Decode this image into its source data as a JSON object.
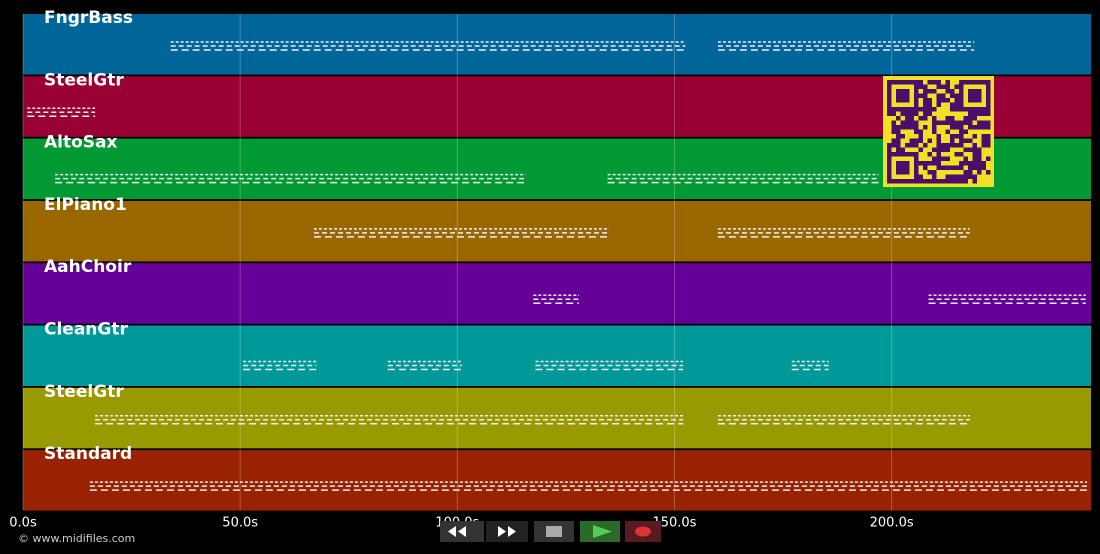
{
  "timeline": {
    "xlim": [
      0,
      245.9
    ],
    "xticks": [
      {
        "value": 0,
        "label": "0.0s"
      },
      {
        "value": 50,
        "label": "50.0s"
      },
      {
        "value": 100,
        "label": "100.0s"
      },
      {
        "value": 150,
        "label": "150.0s"
      },
      {
        "value": 200,
        "label": "200.0s"
      }
    ],
    "grid": true,
    "tracks": [
      {
        "name": "FngrBass",
        "color": "#00669a",
        "spans": [
          [
            34,
            152.5
          ],
          [
            160,
            219
          ]
        ]
      },
      {
        "name": "SteelGtr",
        "color": "#990033",
        "spans": [
          [
            1,
            16.6
          ]
        ]
      },
      {
        "name": "AltoSax",
        "color": "#009933",
        "spans": [
          [
            7.4,
            115.7
          ],
          [
            134.6,
            197
          ]
        ]
      },
      {
        "name": "ElPiano1",
        "color": "#996600",
        "spans": [
          [
            67,
            135
          ],
          [
            160,
            218
          ]
        ]
      },
      {
        "name": "AahChoir",
        "color": "#660099",
        "spans": [
          [
            117.5,
            128
          ],
          [
            208.5,
            244.7
          ]
        ]
      },
      {
        "name": "CleanGtr",
        "color": "#009999",
        "spans": [
          [
            50.7,
            67.5
          ],
          [
            84,
            101
          ],
          [
            118,
            152
          ],
          [
            177,
            185.5
          ]
        ]
      },
      {
        "name": "SteelGtr",
        "color": "#999900",
        "spans": [
          [
            16.6,
            152
          ],
          [
            160,
            218
          ]
        ]
      },
      {
        "name": "Standard",
        "color": "#992200",
        "spans": [
          [
            15.4,
            245
          ]
        ]
      }
    ]
  },
  "footer": {
    "credit": "© www.midifiles.com"
  }
}
